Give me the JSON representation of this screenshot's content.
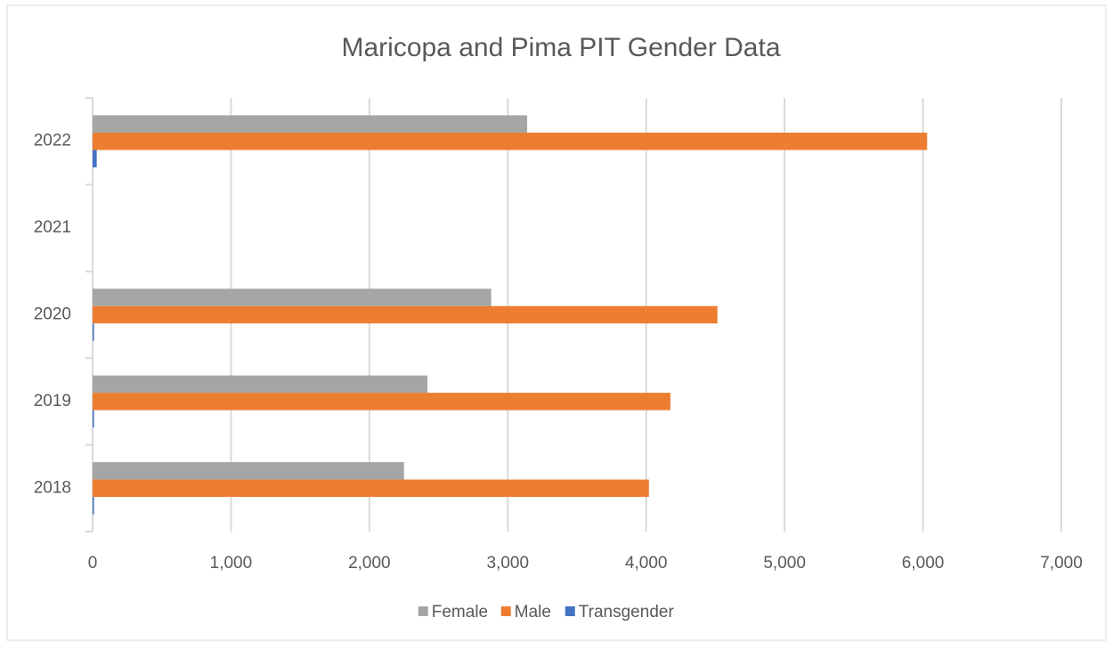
{
  "chart_data": {
    "type": "hbar",
    "title": "Maricopa and Pima PIT Gender Data",
    "categories": [
      "2018",
      "2019",
      "2020",
      "2021",
      "2022"
    ],
    "series": [
      {
        "name": "Female",
        "color": "#a5a5a5",
        "values": [
          2250,
          2420,
          2880,
          null,
          3140
        ]
      },
      {
        "name": "Male",
        "color": "#ed7d31",
        "values": [
          4020,
          4175,
          4515,
          null,
          6030
        ]
      },
      {
        "name": "Transgender",
        "color": "#4472c4",
        "values": [
          10,
          10,
          10,
          null,
          30
        ]
      }
    ],
    "xlim": [
      0,
      7000
    ],
    "xticks": [
      0,
      {
        "value": 1000,
        "label": "1,000"
      },
      {
        "value": 2000,
        "label": "2,000"
      },
      {
        "value": 3000,
        "label": "3,000"
      },
      {
        "value": 4000,
        "label": "4,000"
      },
      {
        "value": 5000,
        "label": "5,000"
      },
      {
        "value": 6000,
        "label": "6,000"
      },
      {
        "value": 7000,
        "label": "7,000"
      }
    ],
    "grid": true,
    "legend": "bottom"
  }
}
